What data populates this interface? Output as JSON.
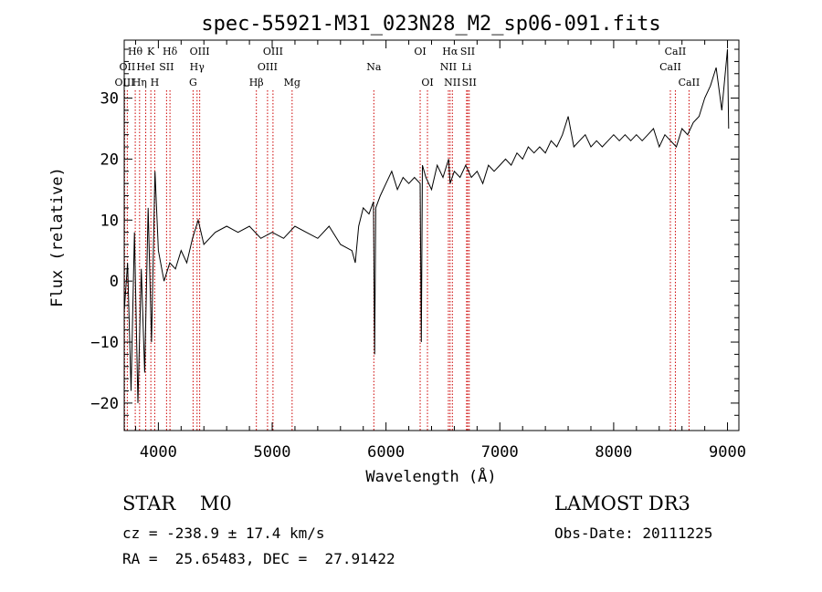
{
  "chart_data": {
    "type": "line",
    "title": "spec-55921-M31_023N28_M2_sp06-091.fits",
    "xlabel": "Wavelength (Å)",
    "ylabel": "Flux (relative)",
    "xlim": [
      3700,
      9100
    ],
    "ylim": [
      -24.5,
      39.5
    ],
    "xticks": [
      4000,
      5000,
      6000,
      7000,
      8000,
      9000
    ],
    "yticks": [
      -20,
      -10,
      0,
      10,
      20,
      30
    ],
    "grid": false,
    "legend": "none",
    "line_color": "#000000",
    "marker_color": "#cc0000",
    "spectrum": {
      "x": [
        3700,
        3730,
        3760,
        3790,
        3820,
        3850,
        3880,
        3910,
        3940,
        3970,
        4000,
        4050,
        4100,
        4150,
        4200,
        4250,
        4300,
        4350,
        4400,
        4500,
        4600,
        4700,
        4800,
        4900,
        5000,
        5100,
        5200,
        5300,
        5400,
        5500,
        5600,
        5700,
        5730,
        5760,
        5800,
        5850,
        5890,
        5900,
        5910,
        5950,
        6000,
        6050,
        6100,
        6150,
        6200,
        6250,
        6300,
        6310,
        6320,
        6350,
        6400,
        6450,
        6500,
        6550,
        6563,
        6600,
        6650,
        6700,
        6750,
        6800,
        6850,
        6900,
        6950,
        7000,
        7050,
        7100,
        7150,
        7200,
        7250,
        7300,
        7350,
        7400,
        7450,
        7500,
        7550,
        7600,
        7650,
        7700,
        7750,
        7800,
        7850,
        7900,
        7950,
        8000,
        8050,
        8100,
        8150,
        8200,
        8250,
        8300,
        8350,
        8400,
        8450,
        8500,
        8550,
        8600,
        8650,
        8700,
        8750,
        8800,
        8850,
        8900,
        8950,
        9000,
        9010
      ],
      "y": [
        -5,
        3,
        -18,
        8,
        -20,
        2,
        -15,
        12,
        -10,
        18,
        5,
        0,
        3,
        2,
        5,
        3,
        7,
        10,
        6,
        8,
        9,
        8,
        9,
        7,
        8,
        7,
        9,
        8,
        7,
        9,
        6,
        5,
        3,
        9,
        12,
        11,
        13,
        -12,
        12,
        14,
        16,
        18,
        15,
        17,
        16,
        17,
        16,
        -10,
        19,
        17,
        15,
        19,
        17,
        20,
        16,
        18,
        17,
        19,
        17,
        18,
        16,
        19,
        18,
        19,
        20,
        19,
        21,
        20,
        22,
        21,
        22,
        21,
        23,
        22,
        24,
        27,
        22,
        23,
        24,
        22,
        23,
        22,
        23,
        24,
        23,
        24,
        23,
        24,
        23,
        24,
        25,
        22,
        24,
        23,
        22,
        25,
        24,
        26,
        27,
        30,
        32,
        35,
        28,
        38,
        25
      ]
    },
    "line_markers": [
      {
        "label": "Hθ",
        "x": 3797,
        "row": 0
      },
      {
        "label": "OII",
        "x": 3727,
        "row": 1
      },
      {
        "label": "OIII",
        "x": 3704,
        "row": 2
      },
      {
        "label": "Hη",
        "x": 3835,
        "row": 2
      },
      {
        "label": "HeI",
        "x": 3889,
        "row": 1
      },
      {
        "label": "K",
        "x": 3934,
        "row": 0
      },
      {
        "label": "H",
        "x": 3968,
        "row": 2
      },
      {
        "label": "SII",
        "x": 4072,
        "row": 1
      },
      {
        "label": "Hδ",
        "x": 4102,
        "row": 0
      },
      {
        "label": "OIII",
        "x": 4363,
        "row": 0
      },
      {
        "label": "Hγ",
        "x": 4340,
        "row": 1
      },
      {
        "label": "G",
        "x": 4305,
        "row": 2
      },
      {
        "label": "Hβ",
        "x": 4861,
        "row": 2
      },
      {
        "label": "OIII",
        "x": 5007,
        "row": 0
      },
      {
        "label": "OIII",
        "x": 4959,
        "row": 1
      },
      {
        "label": "Mg",
        "x": 5175,
        "row": 2
      },
      {
        "label": "Na",
        "x": 5893,
        "row": 1
      },
      {
        "label": "OI",
        "x": 6300,
        "row": 0
      },
      {
        "label": "OI",
        "x": 6364,
        "row": 2
      },
      {
        "label": "Hα",
        "x": 6563,
        "row": 0
      },
      {
        "label": "NII",
        "x": 6548,
        "row": 1
      },
      {
        "label": "NII",
        "x": 6583,
        "row": 2
      },
      {
        "label": "SII",
        "x": 6717,
        "row": 0
      },
      {
        "label": "Li",
        "x": 6708,
        "row": 1
      },
      {
        "label": "SII",
        "x": 6731,
        "row": 2
      },
      {
        "label": "CaII",
        "x": 8542,
        "row": 0
      },
      {
        "label": "CaII",
        "x": 8498,
        "row": 1
      },
      {
        "label": "CaII",
        "x": 8662,
        "row": 2
      }
    ]
  },
  "info": {
    "class": "STAR    M0",
    "survey": "LAMOST DR3",
    "cz": "cz = -238.9 ± 17.4 km/s",
    "obs_date": "Obs-Date: 20111225",
    "coords": "RA =  25.65483, DEC =  27.91422"
  }
}
